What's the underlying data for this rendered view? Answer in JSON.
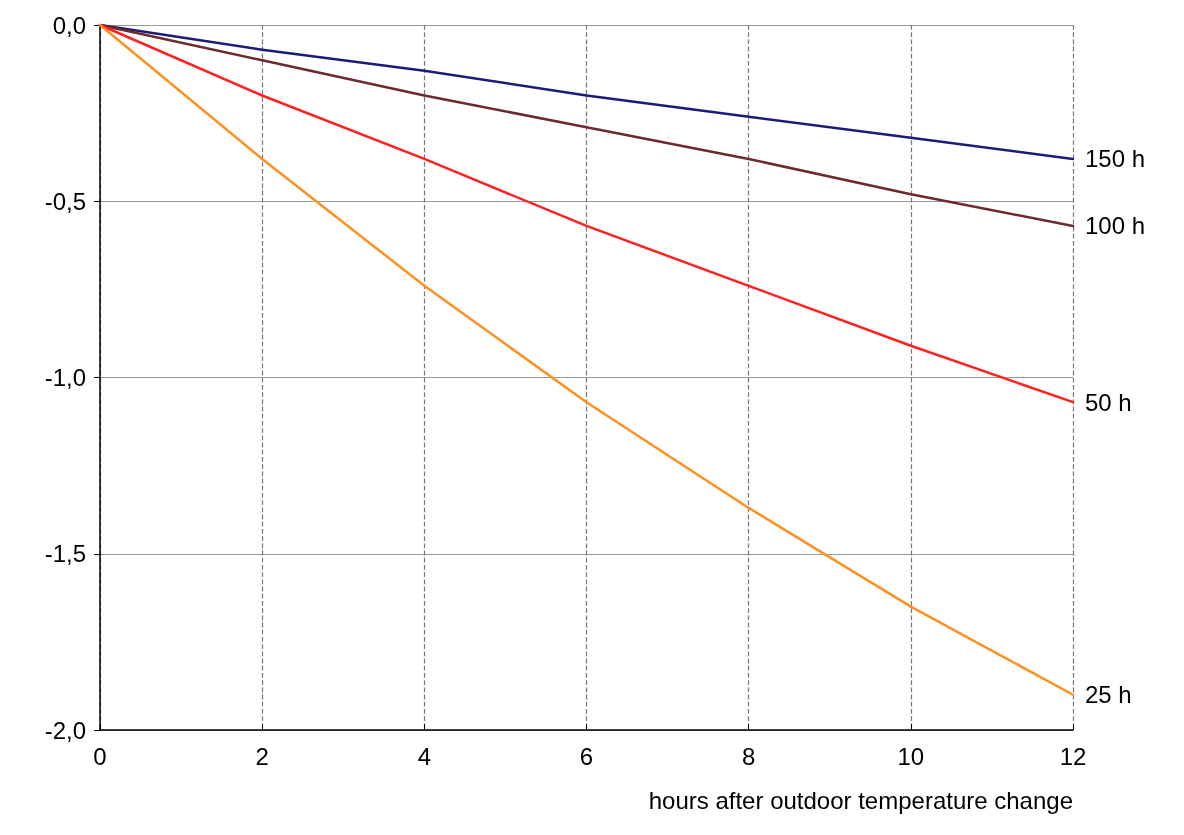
{
  "chart_data": {
    "type": "line",
    "xlabel": "hours after outdoor temperature change",
    "x": [
      0,
      2,
      4,
      6,
      8,
      10,
      12
    ],
    "series": [
      {
        "name": "150 h",
        "color": "#1c1c78",
        "values": [
          0,
          -0.07,
          -0.13,
          -0.2,
          -0.26,
          -0.32,
          -0.38
        ]
      },
      {
        "name": "100 h",
        "color": "#6e2a2a",
        "values": [
          0,
          -0.1,
          -0.2,
          -0.29,
          -0.38,
          -0.48,
          -0.57
        ]
      },
      {
        "name": "50 h",
        "color": "#ff2020",
        "values": [
          0,
          -0.2,
          -0.38,
          -0.57,
          -0.74,
          -0.91,
          -1.07
        ]
      },
      {
        "name": "25 h",
        "color": "#ff9020",
        "values": [
          0,
          -0.38,
          -0.74,
          -1.07,
          -1.37,
          -1.65,
          -1.9
        ]
      }
    ],
    "xlim": [
      0,
      12
    ],
    "xticks": [
      0,
      2,
      4,
      6,
      8,
      10,
      12
    ],
    "ylim": [
      -2,
      0
    ],
    "yticks": [
      {
        "value": -2,
        "label": "-2,0"
      },
      {
        "value": -1.5,
        "label": "-1,5"
      },
      {
        "value": -1,
        "label": "-1,0"
      },
      {
        "value": -0.5,
        "label": "-0,5"
      },
      {
        "value": 0,
        "label": "0,0"
      }
    ],
    "grid": true,
    "marker": "none",
    "line_style": "solid",
    "legend": false
  }
}
